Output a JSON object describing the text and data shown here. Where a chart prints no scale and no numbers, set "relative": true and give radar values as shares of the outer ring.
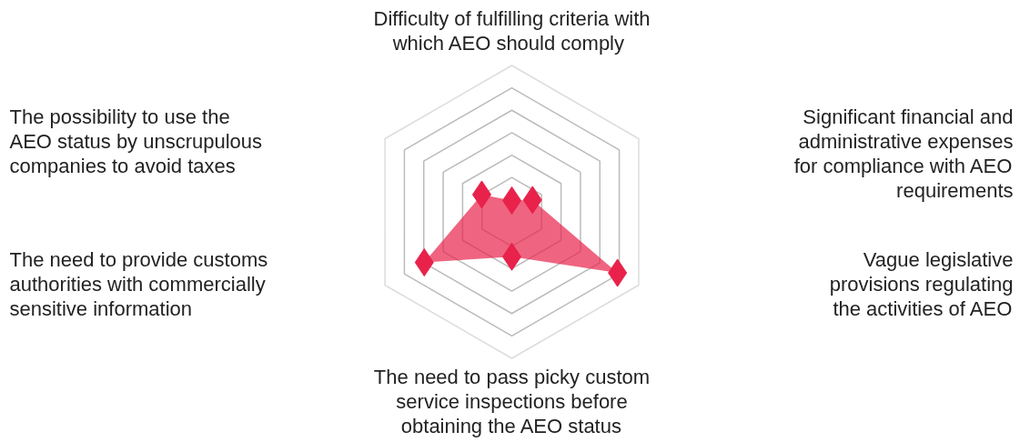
{
  "chart_data": {
    "type": "radar",
    "relative": true,
    "grid": true,
    "marker": "diamond",
    "categories": [
      "Difficulty of fulfilling criteria with\nwhich AEO  should comply",
      "Significant financial and\nadministrative expenses\nfor compliance with AEO\nrequirements",
      "Vague legislative\nprovisions regulating\nthe activities of AEO",
      "The need to pass picky custom\nservice inspections before\nobtaining the AEO status",
      "The need to provide customs\nauthorities with commercially\nsensitive information",
      "The possibility to use the\nAEO status by unscrupulous\ncompanies to avoid taxes"
    ],
    "series": [
      {
        "color": "#e8224a",
        "values": [
          0.078,
          0.163,
          0.833,
          0.306,
          0.69,
          0.237
        ]
      }
    ]
  }
}
